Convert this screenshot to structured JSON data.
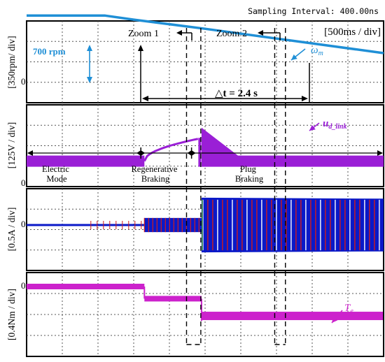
{
  "header": {
    "sampling_interval": "Sampling Interval:  400.00ns"
  },
  "timebase_label": "[500ms / div]",
  "zoom_labels": [
    "Zoom 1",
    "Zoom 2"
  ],
  "mode_labels": {
    "electric": [
      "Electric",
      "Mode"
    ],
    "regen": [
      "Regenerative",
      "Braking"
    ],
    "plug": [
      "Plug",
      "Braking"
    ]
  },
  "annotations": {
    "speed_step": "700 rpm",
    "delta_t": "△t = 2.4 s",
    "omega_symbol": "ω",
    "omega_sub": "m",
    "udc_symbol": "u",
    "udc_sub": "d_link",
    "te_symbol": "T",
    "te_sub": "e"
  },
  "zero_marker": "0",
  "colors": {
    "speed": "#1f8fd6",
    "udc": "#9a1fd6",
    "current_phase_a": "#0a19c8",
    "current_phase_b": "#d01c1c",
    "current_phase_c": "#1a7a3a",
    "torque": "#cc22cc",
    "grid": "#555555",
    "frame": "#000000"
  },
  "chart_data": [
    {
      "type": "line",
      "ylabel": "[350rpm/ div]",
      "series": [
        {
          "name": "ωm",
          "x_div": [
            0,
            1.6,
            2.2,
            3.0,
            5.0,
            10.0
          ],
          "y_div": [
            3.3,
            3.3,
            3.3,
            3.1,
            2.65,
            1.45
          ]
        }
      ]
    },
    {
      "type": "line",
      "ylabel": "[125V / div]",
      "series": [
        {
          "name": "ud_link",
          "x_div": [
            0,
            3.3,
            4.8,
            4.9,
            5.8,
            10.0
          ],
          "y_div": [
            0.6,
            0.6,
            1.7,
            1.0,
            0.6,
            0.6
          ]
        }
      ]
    },
    {
      "type": "line",
      "ylabel": "[0.5A / div]",
      "series": [
        {
          "name": "electric mode amplitude",
          "x_div": [
            0,
            3.3
          ],
          "y_div": [
            0.05,
            0.05
          ]
        },
        {
          "name": "regenerative amplitude",
          "x_div": [
            3.3,
            4.9
          ],
          "y_div": [
            0.35,
            0.35
          ]
        },
        {
          "name": "plug braking amplitude",
          "x_div": [
            4.9,
            10.0
          ],
          "y_div": [
            1.35,
            1.3
          ]
        }
      ]
    },
    {
      "type": "line",
      "ylabel": "[0.4Nm / div]",
      "series": [
        {
          "name": "Te",
          "x_div": [
            0,
            3.3,
            3.3,
            4.9,
            4.9,
            10.0
          ],
          "y_div": [
            0.0,
            0.0,
            -0.6,
            -0.6,
            -1.45,
            -1.35
          ]
        }
      ]
    }
  ]
}
